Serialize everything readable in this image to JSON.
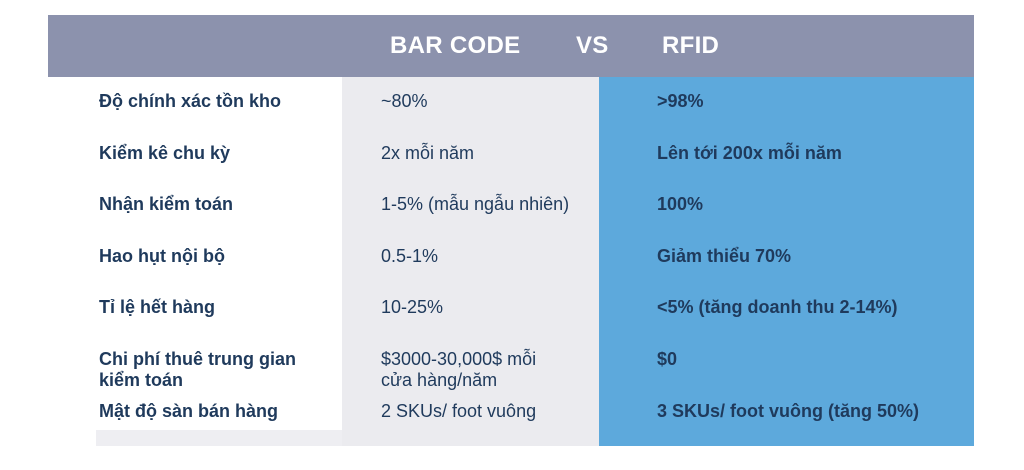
{
  "header": {
    "barcode": "BAR CODE",
    "vs": "VS",
    "rfid": "RFID"
  },
  "rows": [
    {
      "label": "Độ chính xác tồn kho",
      "barcode": "~80%",
      "rfid": ">98%"
    },
    {
      "label": "Kiểm kê chu kỳ",
      "barcode": "2x mỗi năm",
      "rfid": "Lên tới 200x mỗi năm"
    },
    {
      "label": "Nhận kiểm toán",
      "barcode": "1-5% (mẫu ngẫu nhiên)",
      "rfid": "100%"
    },
    {
      "label": "Hao hụt nội bộ",
      "barcode": "0.5-1%",
      "rfid": "Giảm thiểu 70%"
    },
    {
      "label": "Tỉ lệ hết hàng",
      "barcode": "10-25%",
      "rfid": "<5% (tăng doanh thu 2-14%)"
    },
    {
      "label_line1": "Chi phí thuê trung gian",
      "label_line2": "kiểm toán",
      "barcode_line1": "$3000-30,000$ mỗi",
      "barcode_line2": "cửa hàng/năm",
      "rfid": "$0"
    },
    {
      "label": "Mật độ sàn bán hàng",
      "barcode": "2 SKUs/ foot vuông",
      "rfid": "3 SKUs/ foot vuông (tăng 50%)"
    }
  ],
  "colors": {
    "header_bg": "#8c92ad",
    "barcode_bg": "#ebebef",
    "rfid_bg": "#5da9dc",
    "text": "#1f3a5c"
  }
}
